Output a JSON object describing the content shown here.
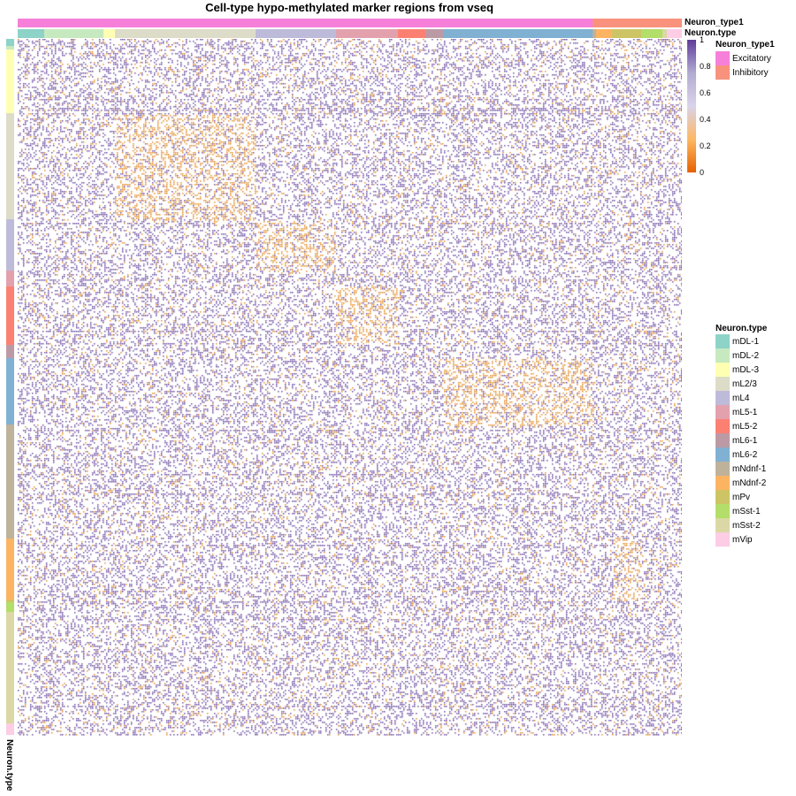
{
  "chart_data": {
    "type": "heatmap",
    "title": "Cell-type hypo-methylated marker regions from vseq",
    "value_range": [
      0,
      1
    ],
    "colorbar": {
      "ticks": [
        "0",
        "0.2",
        "0.4",
        "0.6",
        "0.8",
        "1"
      ],
      "colors": [
        "#e66101",
        "#fdb863",
        "#d9d3ea",
        "#b2abd2",
        "#5e3c99"
      ]
    },
    "annotations": {
      "top_group_label": "Neuron_type1",
      "top_type_label": "Neuron.type",
      "row_type_label": "Neuron.type"
    },
    "legend_type1": {
      "title": "Neuron_type1",
      "items": [
        {
          "label": "Excitatory",
          "color": "#f67fda"
        },
        {
          "label": "Inhibitory",
          "color": "#f8927c"
        }
      ]
    },
    "legend_type": {
      "title": "Neuron.type",
      "items": [
        {
          "label": "mDL-1",
          "color": "#8dd3c7"
        },
        {
          "label": "mDL-2",
          "color": "#c7e9c0"
        },
        {
          "label": "mDL-3",
          "color": "#ffffb3"
        },
        {
          "label": "mL2/3",
          "color": "#dddcc8"
        },
        {
          "label": "mL4",
          "color": "#bebada"
        },
        {
          "label": "mL5-1",
          "color": "#e3a1ad"
        },
        {
          "label": "mL5-2",
          "color": "#fb8072"
        },
        {
          "label": "mL6-1",
          "color": "#bc9aa5"
        },
        {
          "label": "mL6-2",
          "color": "#80b1d3"
        },
        {
          "label": "mNdnf-1",
          "color": "#bfb29b"
        },
        {
          "label": "mNdnf-2",
          "color": "#fdb462"
        },
        {
          "label": "mPv",
          "color": "#cdc565"
        },
        {
          "label": "mSst-1",
          "color": "#b3de69"
        },
        {
          "label": "mSst-2",
          "color": "#dcd8a5"
        },
        {
          "label": "mVip",
          "color": "#fccde5"
        }
      ]
    },
    "column_groups": [
      {
        "type1": "Excitatory",
        "type": "mDL-1",
        "fraction": 0.04
      },
      {
        "type1": "Excitatory",
        "type": "mDL-2",
        "fraction": 0.089
      },
      {
        "type1": "Excitatory",
        "type": "mDL-3",
        "fraction": 0.017
      },
      {
        "type1": "Excitatory",
        "type": "mL2/3",
        "fraction": 0.212
      },
      {
        "type1": "Excitatory",
        "type": "mL4",
        "fraction": 0.121
      },
      {
        "type1": "Excitatory",
        "type": "mL5-1",
        "fraction": 0.093
      },
      {
        "type1": "Excitatory",
        "type": "mL5-2",
        "fraction": 0.042
      },
      {
        "type1": "Excitatory",
        "type": "mL6-1",
        "fraction": 0.027
      },
      {
        "type1": "Excitatory",
        "type": "mL6-2",
        "fraction": 0.225
      },
      {
        "type1": "Inhibitory",
        "type": "mNdnf-1",
        "fraction": 0.005
      },
      {
        "type1": "Inhibitory",
        "type": "mNdnf-2",
        "fraction": 0.024
      },
      {
        "type1": "Inhibitory",
        "type": "mPv",
        "fraction": 0.044
      },
      {
        "type1": "Inhibitory",
        "type": "mSst-1",
        "fraction": 0.032
      },
      {
        "type1": "Inhibitory",
        "type": "mSst-2",
        "fraction": 0.007
      },
      {
        "type1": "Inhibitory",
        "type": "mVip",
        "fraction": 0.022
      }
    ],
    "row_groups": [
      {
        "type": "mDL-1",
        "fraction": 0.01
      },
      {
        "type": "mDL-2",
        "fraction": 0.005
      },
      {
        "type": "mDL-3",
        "fraction": 0.092
      },
      {
        "type": "mL2/3",
        "fraction": 0.152
      },
      {
        "type": "mL4",
        "fraction": 0.073
      },
      {
        "type": "mL5-1",
        "fraction": 0.023
      },
      {
        "type": "mL5-2",
        "fraction": 0.084
      },
      {
        "type": "mL6-1",
        "fraction": 0.019
      },
      {
        "type": "mL6-2",
        "fraction": 0.096
      },
      {
        "type": "mNdnf-1",
        "fraction": 0.163
      },
      {
        "type": "mNdnf-2",
        "fraction": 0.088
      },
      {
        "type": "mPv",
        "fraction": 0.003
      },
      {
        "type": "mSst-1",
        "fraction": 0.015
      },
      {
        "type": "mSst-2",
        "fraction": 0.159
      },
      {
        "type": "mVip",
        "fraction": 0.017
      }
    ],
    "hypomethylated_blocks": [
      {
        "rows": "mL2/3",
        "cols": "mL2/3"
      },
      {
        "rows": "mL4",
        "cols": "mL4"
      },
      {
        "rows": "mL5-2",
        "cols": "mL5-1"
      },
      {
        "rows": "mL6-2",
        "cols": "mL6-2"
      },
      {
        "rows": "mNdnf-2",
        "cols": "mPv"
      }
    ]
  }
}
